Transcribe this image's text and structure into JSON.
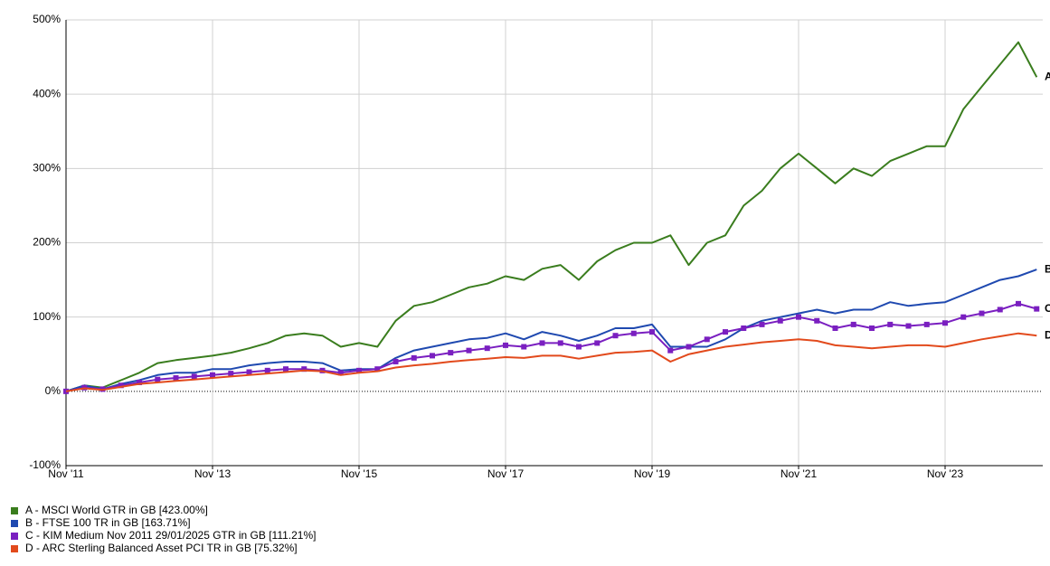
{
  "chart_data": {
    "type": "line",
    "x": [
      "2011-11",
      "2012-02",
      "2012-05",
      "2012-08",
      "2012-11",
      "2013-02",
      "2013-05",
      "2013-08",
      "2013-11",
      "2014-02",
      "2014-05",
      "2014-08",
      "2014-11",
      "2015-02",
      "2015-05",
      "2015-08",
      "2015-11",
      "2016-02",
      "2016-05",
      "2016-08",
      "2016-11",
      "2017-02",
      "2017-05",
      "2017-08",
      "2017-11",
      "2018-02",
      "2018-05",
      "2018-08",
      "2018-11",
      "2019-02",
      "2019-05",
      "2019-08",
      "2019-11",
      "2020-02",
      "2020-05",
      "2020-08",
      "2020-11",
      "2021-02",
      "2021-05",
      "2021-08",
      "2021-11",
      "2022-02",
      "2022-05",
      "2022-08",
      "2022-11",
      "2023-02",
      "2023-05",
      "2023-08",
      "2023-11",
      "2024-02",
      "2024-05",
      "2024-08",
      "2024-11",
      "2025-02"
    ],
    "series": [
      {
        "name": "A - MSCI World GTR in GB [423.00%]",
        "end_label": "A",
        "color": "#3a7d1e",
        "values": [
          0,
          8,
          5,
          15,
          25,
          38,
          42,
          45,
          48,
          52,
          58,
          65,
          75,
          78,
          75,
          60,
          65,
          60,
          95,
          115,
          120,
          130,
          140,
          145,
          155,
          150,
          165,
          170,
          150,
          175,
          190,
          200,
          200,
          210,
          170,
          200,
          210,
          250,
          270,
          300,
          320,
          300,
          280,
          300,
          290,
          310,
          320,
          330,
          330,
          380,
          410,
          440,
          470,
          423
        ]
      },
      {
        "name": "B - FTSE 100 TR in GB [163.71%]",
        "end_label": "B",
        "color": "#1f49b0",
        "values": [
          0,
          8,
          3,
          10,
          15,
          22,
          25,
          25,
          30,
          30,
          35,
          38,
          40,
          40,
          38,
          28,
          30,
          30,
          45,
          55,
          60,
          65,
          70,
          72,
          78,
          70,
          80,
          75,
          68,
          75,
          85,
          85,
          90,
          60,
          60,
          60,
          70,
          85,
          95,
          100,
          105,
          110,
          105,
          110,
          110,
          120,
          115,
          118,
          120,
          130,
          140,
          150,
          155,
          164
        ]
      },
      {
        "name": "C - KIM Medium Nov 2011  29/01/2025 GTR in GB [111.21%]",
        "end_label": "C",
        "color": "#7a1fc0",
        "marker": "square",
        "values": [
          0,
          5,
          3,
          8,
          12,
          16,
          18,
          20,
          22,
          24,
          26,
          28,
          30,
          30,
          28,
          25,
          28,
          30,
          40,
          45,
          48,
          52,
          55,
          58,
          62,
          60,
          65,
          65,
          60,
          65,
          75,
          78,
          80,
          55,
          60,
          70,
          80,
          85,
          90,
          95,
          100,
          95,
          85,
          90,
          85,
          90,
          88,
          90,
          92,
          100,
          105,
          110,
          118,
          111
        ]
      },
      {
        "name": "D - ARC Sterling Balanced Asset PCI TR in GB [75.32%]",
        "end_label": "D",
        "color": "#e24a1c",
        "values": [
          0,
          4,
          2,
          6,
          10,
          12,
          14,
          16,
          18,
          20,
          22,
          24,
          26,
          28,
          27,
          22,
          25,
          27,
          32,
          35,
          37,
          40,
          42,
          44,
          46,
          45,
          48,
          48,
          44,
          48,
          52,
          53,
          55,
          40,
          50,
          55,
          60,
          63,
          66,
          68,
          70,
          68,
          62,
          60,
          58,
          60,
          62,
          62,
          60,
          65,
          70,
          74,
          78,
          75
        ]
      }
    ],
    "xlim": [
      "2011-11",
      "2025-03"
    ],
    "xticks": [
      {
        "value": "2011-11",
        "label": "Nov '11"
      },
      {
        "value": "2013-11",
        "label": "Nov '13"
      },
      {
        "value": "2015-11",
        "label": "Nov '15"
      },
      {
        "value": "2017-11",
        "label": "Nov '17"
      },
      {
        "value": "2019-11",
        "label": "Nov '19"
      },
      {
        "value": "2021-11",
        "label": "Nov '21"
      },
      {
        "value": "2023-11",
        "label": "Nov '23"
      }
    ],
    "ylim": [
      -100,
      500
    ],
    "yticks": [
      {
        "value": -100,
        "label": "-100%"
      },
      {
        "value": 0,
        "label": "0%"
      },
      {
        "value": 100,
        "label": "100%"
      },
      {
        "value": 200,
        "label": "200%"
      },
      {
        "value": 300,
        "label": "300%"
      },
      {
        "value": 400,
        "label": "400%"
      },
      {
        "value": 500,
        "label": "500%"
      }
    ],
    "grid": true,
    "legend": "bottom-left"
  }
}
